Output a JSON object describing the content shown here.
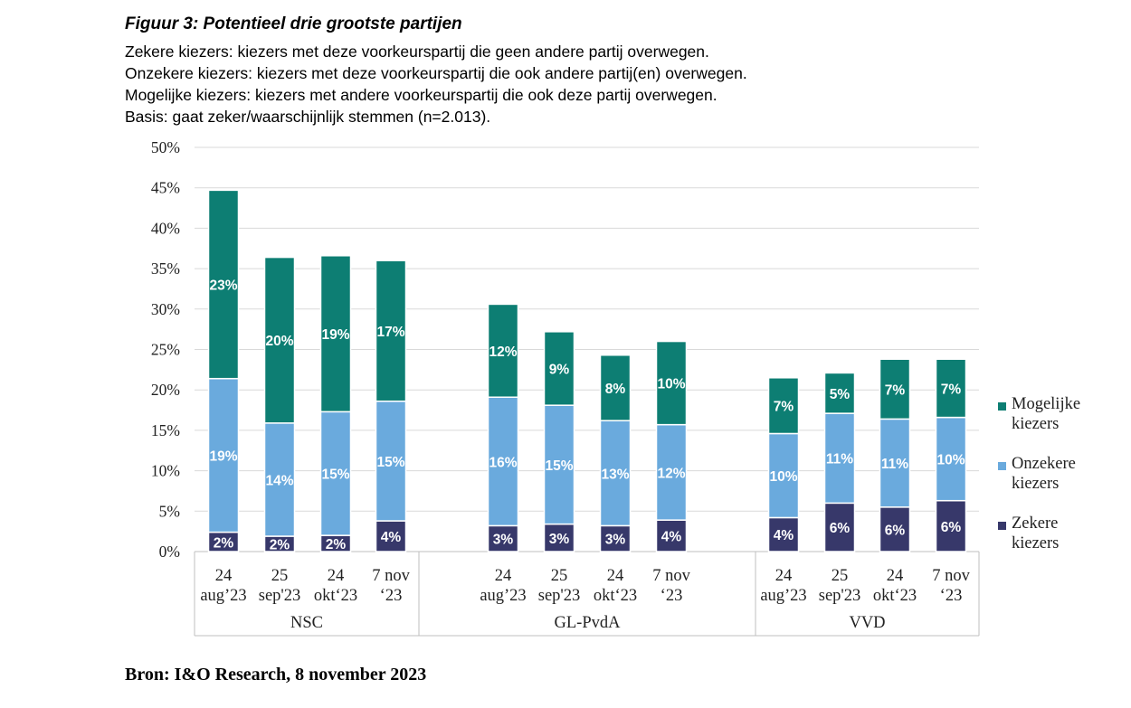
{
  "title": "Figuur 3: Potentieel drie grootste partijen",
  "subtitle_lines": [
    "Zekere kiezers: kiezers met deze voorkeurspartij die geen andere partij overwegen.",
    "Onzekere kiezers: kiezers met deze voorkeurspartij die ook andere partij(en) overwegen.",
    "Mogelijke kiezers: kiezers met andere voorkeurspartij die ook deze partij overwegen.",
    "Basis: gaat zeker/waarschijnlijk stemmen (n=2.013)."
  ],
  "source": "Bron: I&O Research, 8 november 2023",
  "colors": {
    "zekere": "#37386a",
    "onzekere": "#6aaadd",
    "mogelijke": "#0d7e73",
    "grid": "#d9d9d9",
    "axis": "#bfbfbf"
  },
  "chart_data": {
    "type": "bar",
    "stacked": true,
    "ylim": [
      0,
      50
    ],
    "yticks": [
      "0%",
      "5%",
      "10%",
      "15%",
      "20%",
      "25%",
      "30%",
      "35%",
      "40%",
      "45%",
      "50%"
    ],
    "grid": true,
    "legend_position": "right",
    "groups": [
      {
        "name": "NSC",
        "categories": [
          [
            "24",
            "aug’23"
          ],
          [
            "25",
            "sep'23"
          ],
          [
            "24",
            "okt‘23"
          ],
          [
            "7 nov",
            "‘23"
          ]
        ]
      },
      {
        "name": "GL-PvdA",
        "categories": [
          [
            "24",
            "aug’23"
          ],
          [
            "25",
            "sep'23"
          ],
          [
            "24",
            "okt‘23"
          ],
          [
            "7 nov",
            "‘23"
          ]
        ]
      },
      {
        "name": "VVD",
        "categories": [
          [
            "24",
            "aug’23"
          ],
          [
            "25",
            "sep'23"
          ],
          [
            "24",
            "okt‘23"
          ],
          [
            "7 nov",
            "‘23"
          ]
        ]
      }
    ],
    "series": [
      {
        "name": "Zekere kiezers",
        "key": "zekere",
        "values": [
          2.4,
          1.9,
          2.0,
          3.8,
          3.2,
          3.4,
          3.2,
          3.9,
          4.2,
          6.0,
          5.5,
          6.3
        ],
        "labels": [
          "2%",
          "2%",
          "2%",
          "4%",
          "3%",
          "3%",
          "3%",
          "4%",
          "4%",
          "6%",
          "6%",
          "6%"
        ]
      },
      {
        "name": "Onzekere kiezers",
        "key": "onzekere",
        "values": [
          19.0,
          14.0,
          15.3,
          14.8,
          15.9,
          14.7,
          13.0,
          11.8,
          10.4,
          11.1,
          10.9,
          10.3
        ],
        "labels": [
          "19%",
          "14%",
          "15%",
          "15%",
          "16%",
          "15%",
          "13%",
          "12%",
          "10%",
          "11%",
          "11%",
          "10%"
        ]
      },
      {
        "name": "Mogelijke kiezers",
        "key": "mogelijke",
        "values": [
          23.3,
          20.5,
          19.3,
          17.4,
          11.5,
          9.1,
          8.1,
          10.3,
          6.9,
          5.0,
          7.4,
          7.2
        ],
        "labels": [
          "23%",
          "20%",
          "19%",
          "17%",
          "12%",
          "9%",
          "8%",
          "10%",
          "7%",
          "5%",
          "7%",
          "7%"
        ]
      }
    ],
    "legend": [
      {
        "key": "mogelijke",
        "lines": [
          "Mogelijke",
          "kiezers"
        ]
      },
      {
        "key": "onzekere",
        "lines": [
          "Onzekere",
          "kiezers"
        ]
      },
      {
        "key": "zekere",
        "lines": [
          "Zekere",
          "kiezers"
        ]
      }
    ]
  }
}
